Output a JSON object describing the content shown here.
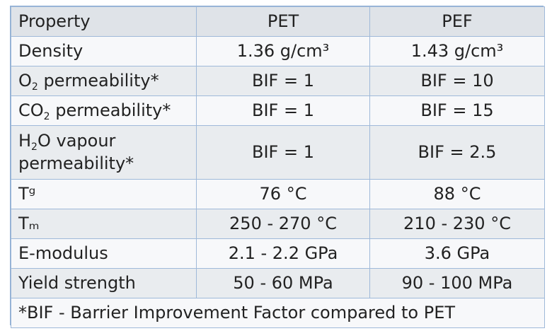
{
  "table": {
    "header": [
      "Property",
      "PET",
      "PEF"
    ],
    "rows": [
      {
        "label": "Density",
        "pet": "1.36 g/cm³",
        "pef": "1.43 g/cm³"
      },
      {
        "label_pre": "O",
        "label_sub": "2",
        "label_post": " permeability*",
        "pet": "BIF = 1",
        "pef": "BIF = 10"
      },
      {
        "label_pre": "CO",
        "label_sub": "2",
        "label_post": " permeability*",
        "pet": "BIF = 1",
        "pef": "BIF = 15"
      },
      {
        "label_pre": "H",
        "label_sub": "2",
        "label_post": "O vapour",
        "label_line2": "permeability*",
        "pet": "BIF = 1",
        "pef": "BIF = 2.5"
      },
      {
        "label": "Tᵍ",
        "pet": "76 °C",
        "pef": "88 °C"
      },
      {
        "label": "Tₘ",
        "pet": "250 - 270 °C",
        "pef": "210 - 230 °C"
      },
      {
        "label": "E-modulus",
        "pet": "2.1 - 2.2 GPa",
        "pef": "3.6 GPa"
      },
      {
        "label": "Yield strength",
        "pet": "50 - 60 MPa",
        "pef": "90 - 100 MPa"
      }
    ],
    "footnote": "*BIF - Barrier Improvement Factor compared to PET"
  },
  "colors": {
    "border": "#9fb9d9",
    "row_dark": "#e9ecef",
    "row_light": "#f7f8fa",
    "text": "#222222"
  }
}
